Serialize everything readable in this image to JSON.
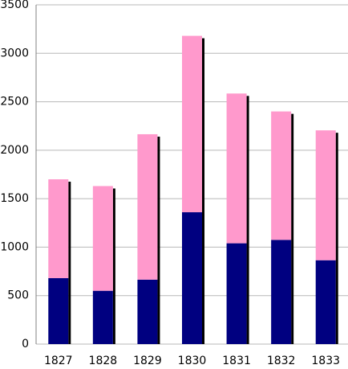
{
  "chart_data": {
    "type": "bar",
    "stacked": true,
    "categories": [
      "1827",
      "1828",
      "1829",
      "1830",
      "1831",
      "1832",
      "1833"
    ],
    "series": [
      {
        "values": [
          680,
          550,
          665,
          1360,
          1040,
          1075,
          865
        ]
      },
      {
        "values": [
          1020,
          1080,
          1500,
          1820,
          1545,
          1325,
          1340
        ]
      }
    ],
    "ylim": [
      0,
      3500
    ],
    "yticks": [
      0,
      500,
      1000,
      1500,
      2000,
      2500,
      3000,
      3500
    ],
    "grid": true,
    "legend": "none",
    "colors": {
      "series": [
        "#000080",
        "#ff99cc"
      ],
      "shadow": "#000000",
      "grid": "#b8b8b8",
      "axis": "#808080"
    }
  }
}
